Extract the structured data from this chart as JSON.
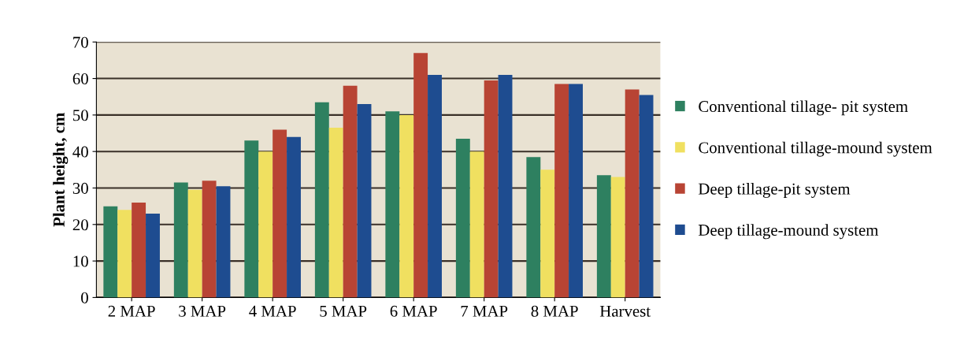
{
  "chart_data": {
    "type": "bar",
    "ylabel": "Plant height, cm",
    "categories": [
      "2 MAP",
      "3 MAP",
      "4 MAP",
      "5 MAP",
      "6 MAP",
      "7 MAP",
      "8 MAP",
      "Harvest"
    ],
    "series": [
      {
        "name": "Conventional tillage- pit system",
        "color": "#2e8060",
        "values": [
          25,
          31.5,
          43,
          53.5,
          51,
          43.5,
          38.5,
          33.5
        ]
      },
      {
        "name": "Conventional tillage-mound system",
        "color": "#f0e060",
        "values": [
          24,
          29.5,
          40,
          46.5,
          50,
          40,
          35,
          33
        ]
      },
      {
        "name": "Deep tillage-pit system",
        "color": "#b84434",
        "values": [
          26,
          32,
          46,
          58,
          67,
          59.5,
          58.5,
          57
        ]
      },
      {
        "name": "Deep tillage-mound system",
        "color": "#1e4c90",
        "values": [
          23,
          30.5,
          44,
          53,
          61,
          61,
          58.5,
          55.5
        ]
      }
    ],
    "ylim": [
      0,
      70
    ],
    "yticks": [
      0,
      10,
      20,
      30,
      40,
      50,
      60,
      70
    ],
    "grid": "y",
    "legend": "right"
  }
}
